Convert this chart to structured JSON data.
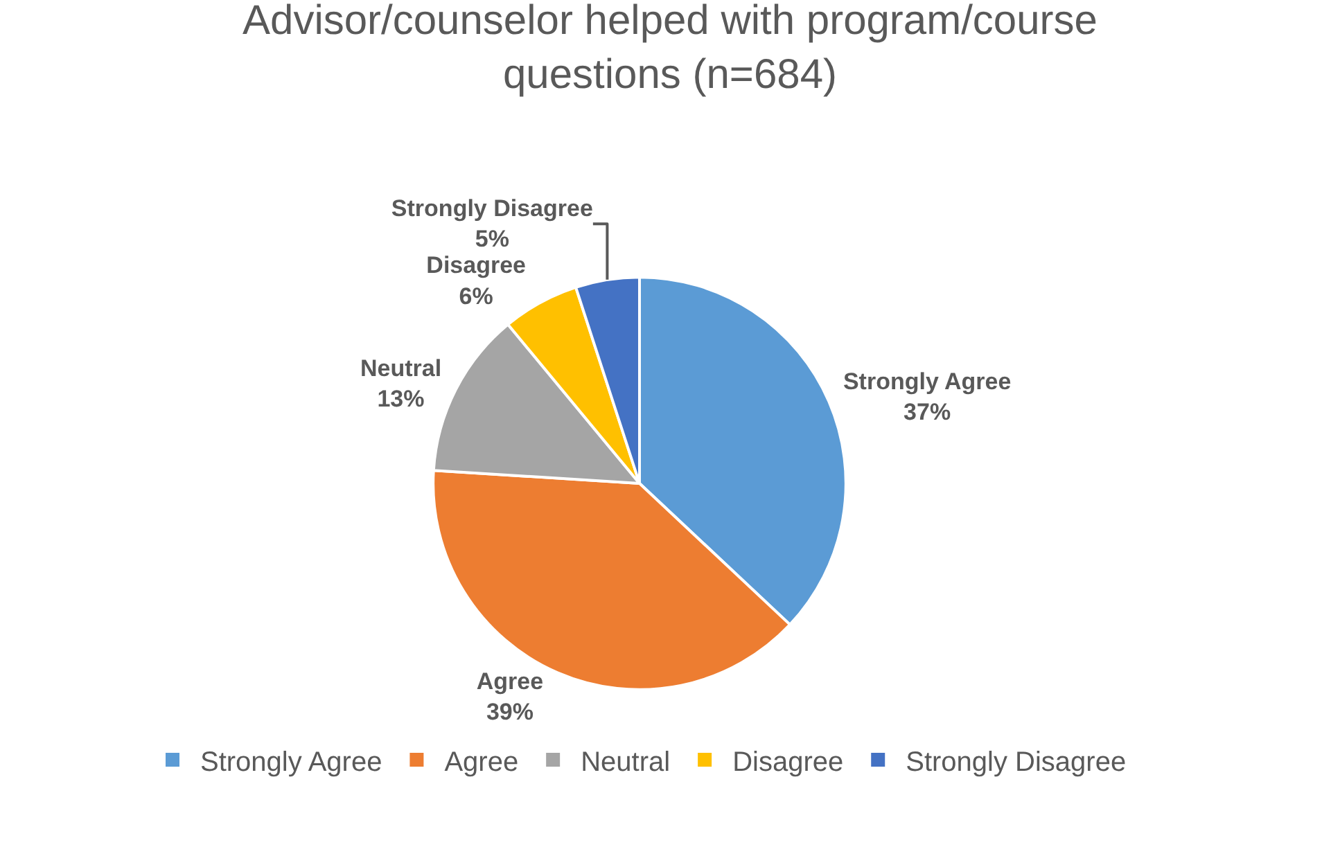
{
  "chart_data": {
    "type": "pie",
    "title": "Advisor/counselor helped with program/course questions (n=684)",
    "categories": [
      "Strongly Agree",
      "Agree",
      "Neutral",
      "Disagree",
      "Strongly Disagree"
    ],
    "values": [
      37,
      39,
      13,
      6,
      5
    ],
    "colors": [
      "#5b9bd5",
      "#ed7d31",
      "#a5a5a5",
      "#ffc000",
      "#4472c4"
    ],
    "value_labels": [
      "37%",
      "39%",
      "13%",
      "6%",
      "5%"
    ],
    "legend": "bottom"
  }
}
